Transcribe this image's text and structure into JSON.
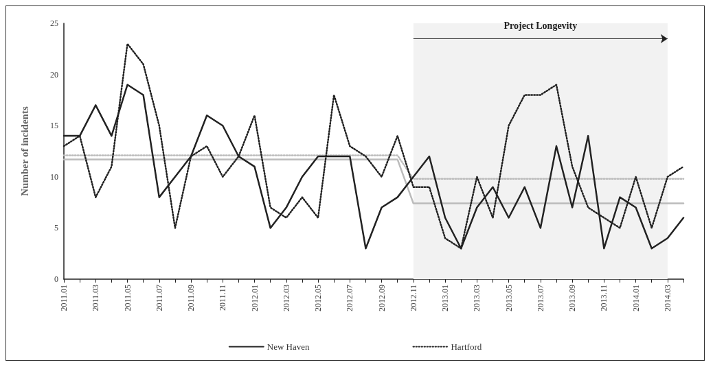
{
  "chart_data": {
    "type": "line",
    "ylabel": "Number of incidents",
    "categories": [
      "2011.01",
      null,
      "2011.03",
      null,
      "2011.05",
      null,
      "2011.07",
      null,
      "2011.09",
      null,
      "2011.11",
      null,
      "2012.01",
      null,
      "2012.03",
      null,
      "2012.05",
      null,
      "2012.07",
      null,
      "2012.09",
      null,
      "2012.11",
      null,
      "2013.01",
      null,
      "2013.03",
      null,
      "2013.05",
      null,
      "2013.07",
      null,
      "2013.09",
      null,
      "2013.11",
      null,
      "2014.01",
      null,
      "2014.03",
      null
    ],
    "series": [
      {
        "name": "New Haven",
        "color": "#222222",
        "line_style": "solid",
        "values": [
          14,
          14,
          17,
          14,
          19,
          18,
          8,
          10,
          12,
          16,
          15,
          12,
          11,
          5,
          7,
          10,
          12,
          12,
          12,
          3,
          7,
          8,
          10,
          12,
          6,
          3,
          7,
          9,
          6,
          9,
          5,
          13,
          7,
          14,
          3,
          8,
          7,
          3,
          4,
          6
        ]
      },
      {
        "name": "Hartford",
        "color": "#222222",
        "line_style": "dotted",
        "values": [
          13,
          14,
          8,
          11,
          23,
          21,
          15,
          5,
          12,
          13,
          10,
          12,
          16,
          7,
          6,
          8,
          6,
          18,
          13,
          12,
          10,
          14,
          9,
          9,
          4,
          3,
          10,
          6,
          15,
          18,
          18,
          19,
          11,
          7,
          6,
          5,
          10,
          5,
          10,
          11
        ]
      },
      {
        "color": "#bbbbbb",
        "line_style": "solid",
        "values": [
          11.7,
          11.7,
          11.7,
          11.7,
          11.7,
          11.7,
          11.7,
          11.7,
          11.7,
          11.7,
          11.7,
          11.7,
          11.7,
          11.7,
          11.7,
          11.7,
          11.7,
          11.7,
          11.7,
          11.7,
          11.7,
          11.7,
          7.4,
          7.4,
          7.4,
          7.4,
          7.4,
          7.4,
          7.4,
          7.4,
          7.4,
          7.4,
          7.4,
          7.4,
          7.4,
          7.4,
          7.4,
          7.4,
          7.4,
          7.4
        ]
      },
      {
        "color": "#bbbbbb",
        "line_style": "dotted",
        "values": [
          12.1,
          12.1,
          12.1,
          12.1,
          12.1,
          12.1,
          12.1,
          12.1,
          12.1,
          12.1,
          12.1,
          12.1,
          12.1,
          12.1,
          12.1,
          12.1,
          12.1,
          12.1,
          12.1,
          12.1,
          12.1,
          12.1,
          9.8,
          9.8,
          9.8,
          9.8,
          9.8,
          9.8,
          9.8,
          9.8,
          9.8,
          9.8,
          9.8,
          9.8,
          9.8,
          9.8,
          9.8,
          9.8,
          9.8,
          9.8
        ]
      }
    ],
    "ylim": [
      0,
      25
    ],
    "yticks": [
      0,
      5,
      10,
      15,
      20,
      25
    ],
    "grid": false,
    "legend": "bottom",
    "marker": "none",
    "bands": [
      {
        "axis": "x",
        "from": "2012.11",
        "to": "2014.03",
        "label": "Project Longevity",
        "color": "#f2f2f2"
      }
    ]
  }
}
